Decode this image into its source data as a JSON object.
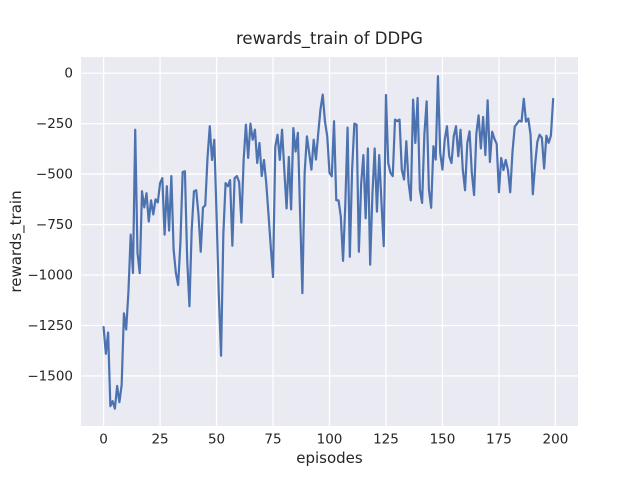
{
  "chart_data": {
    "type": "line",
    "title": "rewards_train of DDPG",
    "xlabel": "episodes",
    "ylabel": "rewards_train",
    "series_name": "rewards_train",
    "x_start": 0,
    "x_step": 1,
    "xlim": [
      -10,
      210
    ],
    "ylim": [
      -1748,
      80
    ],
    "grid": true,
    "legend": "none",
    "plot_bg": "#eaeaf2",
    "grid_color": "#ffffff",
    "line_color": "#4c72b0",
    "text_color": "#262626",
    "x_tick_values": [
      0,
      25,
      50,
      75,
      100,
      125,
      150,
      175,
      200
    ],
    "x_tick_labels": [
      "0",
      "25",
      "50",
      "75",
      "100",
      "125",
      "150",
      "175",
      "200"
    ],
    "y_tick_values": [
      0,
      -250,
      -500,
      -750,
      -1000,
      -1250,
      -1500
    ],
    "y_tick_labels": [
      "0",
      "−250",
      "−500",
      "−750",
      "−1000",
      "−1250",
      "−1500"
    ],
    "values": [
      -1258,
      -1390,
      -1285,
      -1650,
      -1625,
      -1662,
      -1550,
      -1630,
      -1545,
      -1190,
      -1270,
      -1082,
      -800,
      -990,
      -280,
      -890,
      -991,
      -585,
      -665,
      -595,
      -735,
      -630,
      -700,
      -625,
      -640,
      -545,
      -520,
      -800,
      -560,
      -780,
      -510,
      -875,
      -990,
      -1050,
      -840,
      -490,
      -486,
      -923,
      -1155,
      -775,
      -585,
      -580,
      -700,
      -885,
      -665,
      -655,
      -420,
      -263,
      -430,
      -330,
      -700,
      -1100,
      -1400,
      -800,
      -545,
      -560,
      -530,
      -855,
      -520,
      -510,
      -540,
      -740,
      -430,
      -255,
      -420,
      -250,
      -330,
      -280,
      -445,
      -346,
      -510,
      -430,
      -545,
      -700,
      -860,
      -1010,
      -365,
      -305,
      -430,
      -280,
      -480,
      -670,
      -415,
      -675,
      -272,
      -388,
      -296,
      -700,
      -1090,
      -495,
      -313,
      -395,
      -478,
      -330,
      -428,
      -300,
      -180,
      -106,
      -240,
      -313,
      -494,
      -511,
      -238,
      -630,
      -630,
      -710,
      -930,
      -650,
      -270,
      -910,
      -480,
      -250,
      -255,
      -885,
      -550,
      -406,
      -719,
      -373,
      -949,
      -600,
      -373,
      -686,
      -406,
      -640,
      -857,
      -108,
      -445,
      -494,
      -510,
      -230,
      -238,
      -230,
      -478,
      -527,
      -337,
      -544,
      -630,
      -131,
      -346,
      -123,
      -577,
      -643,
      -304,
      -140,
      -577,
      -667,
      -362,
      -428,
      -15,
      -395,
      -478,
      -329,
      -263,
      -412,
      -445,
      -313,
      -263,
      -412,
      -280,
      -478,
      -580,
      -346,
      -288,
      -494,
      -604,
      -300,
      -209,
      -373,
      -217,
      -406,
      -135,
      -440,
      -290,
      -325,
      -350,
      -590,
      -420,
      -480,
      -430,
      -480,
      -590,
      -390,
      -265,
      -250,
      -235,
      -240,
      -127,
      -240,
      -225,
      -305,
      -600,
      -455,
      -340,
      -305,
      -320,
      -472,
      -310,
      -345,
      -310,
      -128
    ]
  }
}
